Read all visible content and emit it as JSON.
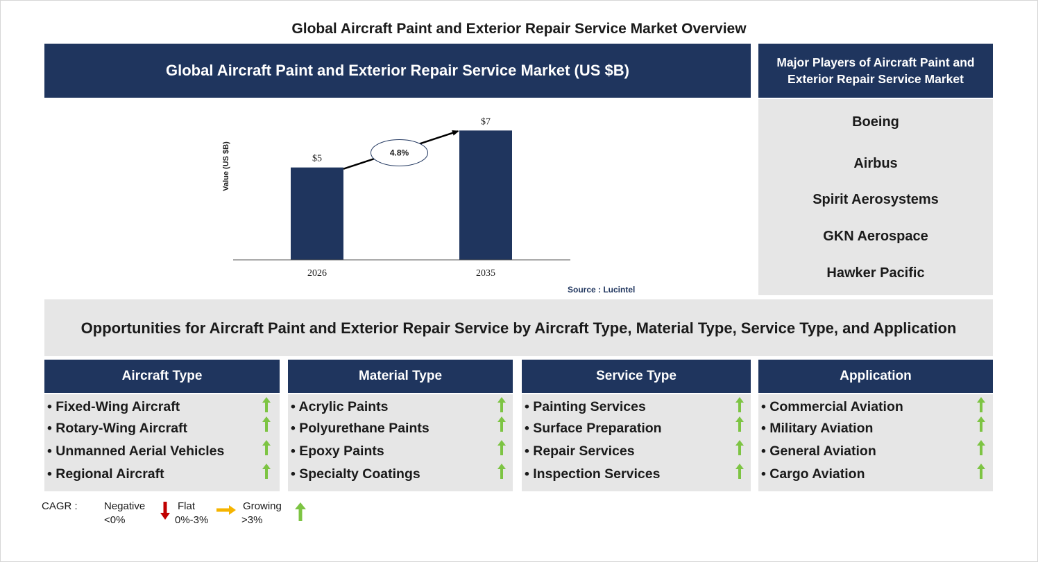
{
  "title": "Global Aircraft Paint and Exterior Repair Service Market Overview",
  "chart_header": "Global Aircraft Paint and Exterior Repair Service Market (US $B)",
  "chart_data": {
    "type": "bar",
    "categories": [
      "2026",
      "2035"
    ],
    "values": [
      5,
      7
    ],
    "value_labels": [
      "$5",
      "$7"
    ],
    "ylabel": "Value (US $B)",
    "ylim": [
      0,
      7.5
    ],
    "cagr_label": "4.8%",
    "bar_color": "#1f355e",
    "grid": false
  },
  "source": "Source : Lucintel",
  "players": {
    "header": "Major Players of Aircraft Paint and Exterior Repair Service Market",
    "items": [
      "Boeing",
      "Airbus",
      "Spirit Aerosystems",
      "GKN Aerospace",
      "Hawker Pacific"
    ]
  },
  "opportunities_title": "Opportunities for Aircraft Paint and Exterior Repair Service by Aircraft Type, Material Type, Service Type, and Application",
  "segments": [
    {
      "header": "Aircraft Type",
      "items": [
        "• Fixed-Wing Aircraft",
        "• Rotary-Wing Aircraft",
        "• Unmanned Aerial Vehicles",
        "• Regional Aircraft"
      ]
    },
    {
      "header": "Material Type",
      "items": [
        "• Acrylic Paints",
        "• Polyurethane Paints",
        "• Epoxy Paints",
        "• Specialty Coatings"
      ]
    },
    {
      "header": "Service Type",
      "items": [
        "• Painting Services",
        "• Surface Preparation",
        "• Repair Services",
        "• Inspection Services"
      ]
    },
    {
      "header": "Application",
      "items": [
        "• Commercial Aviation",
        "• Military Aviation",
        "• General Aviation",
        "• Cargo Aviation"
      ]
    }
  ],
  "legend": {
    "label": "CAGR :",
    "negative": "Negative",
    "negative_range": "<0%",
    "flat": "Flat",
    "flat_range": "0%-3%",
    "growing": "Growing",
    "growing_range": ">3%"
  },
  "colors": {
    "navy": "#1f355e",
    "grey": "#e6e6e6",
    "growth_arrow": "#7dc443",
    "negative_arrow": "#c00000",
    "flat_arrow": "#f5b400"
  },
  "icons": {
    "growth": "up-arrow-icon",
    "negative": "down-arrow-icon",
    "flat": "right-arrow-icon"
  }
}
